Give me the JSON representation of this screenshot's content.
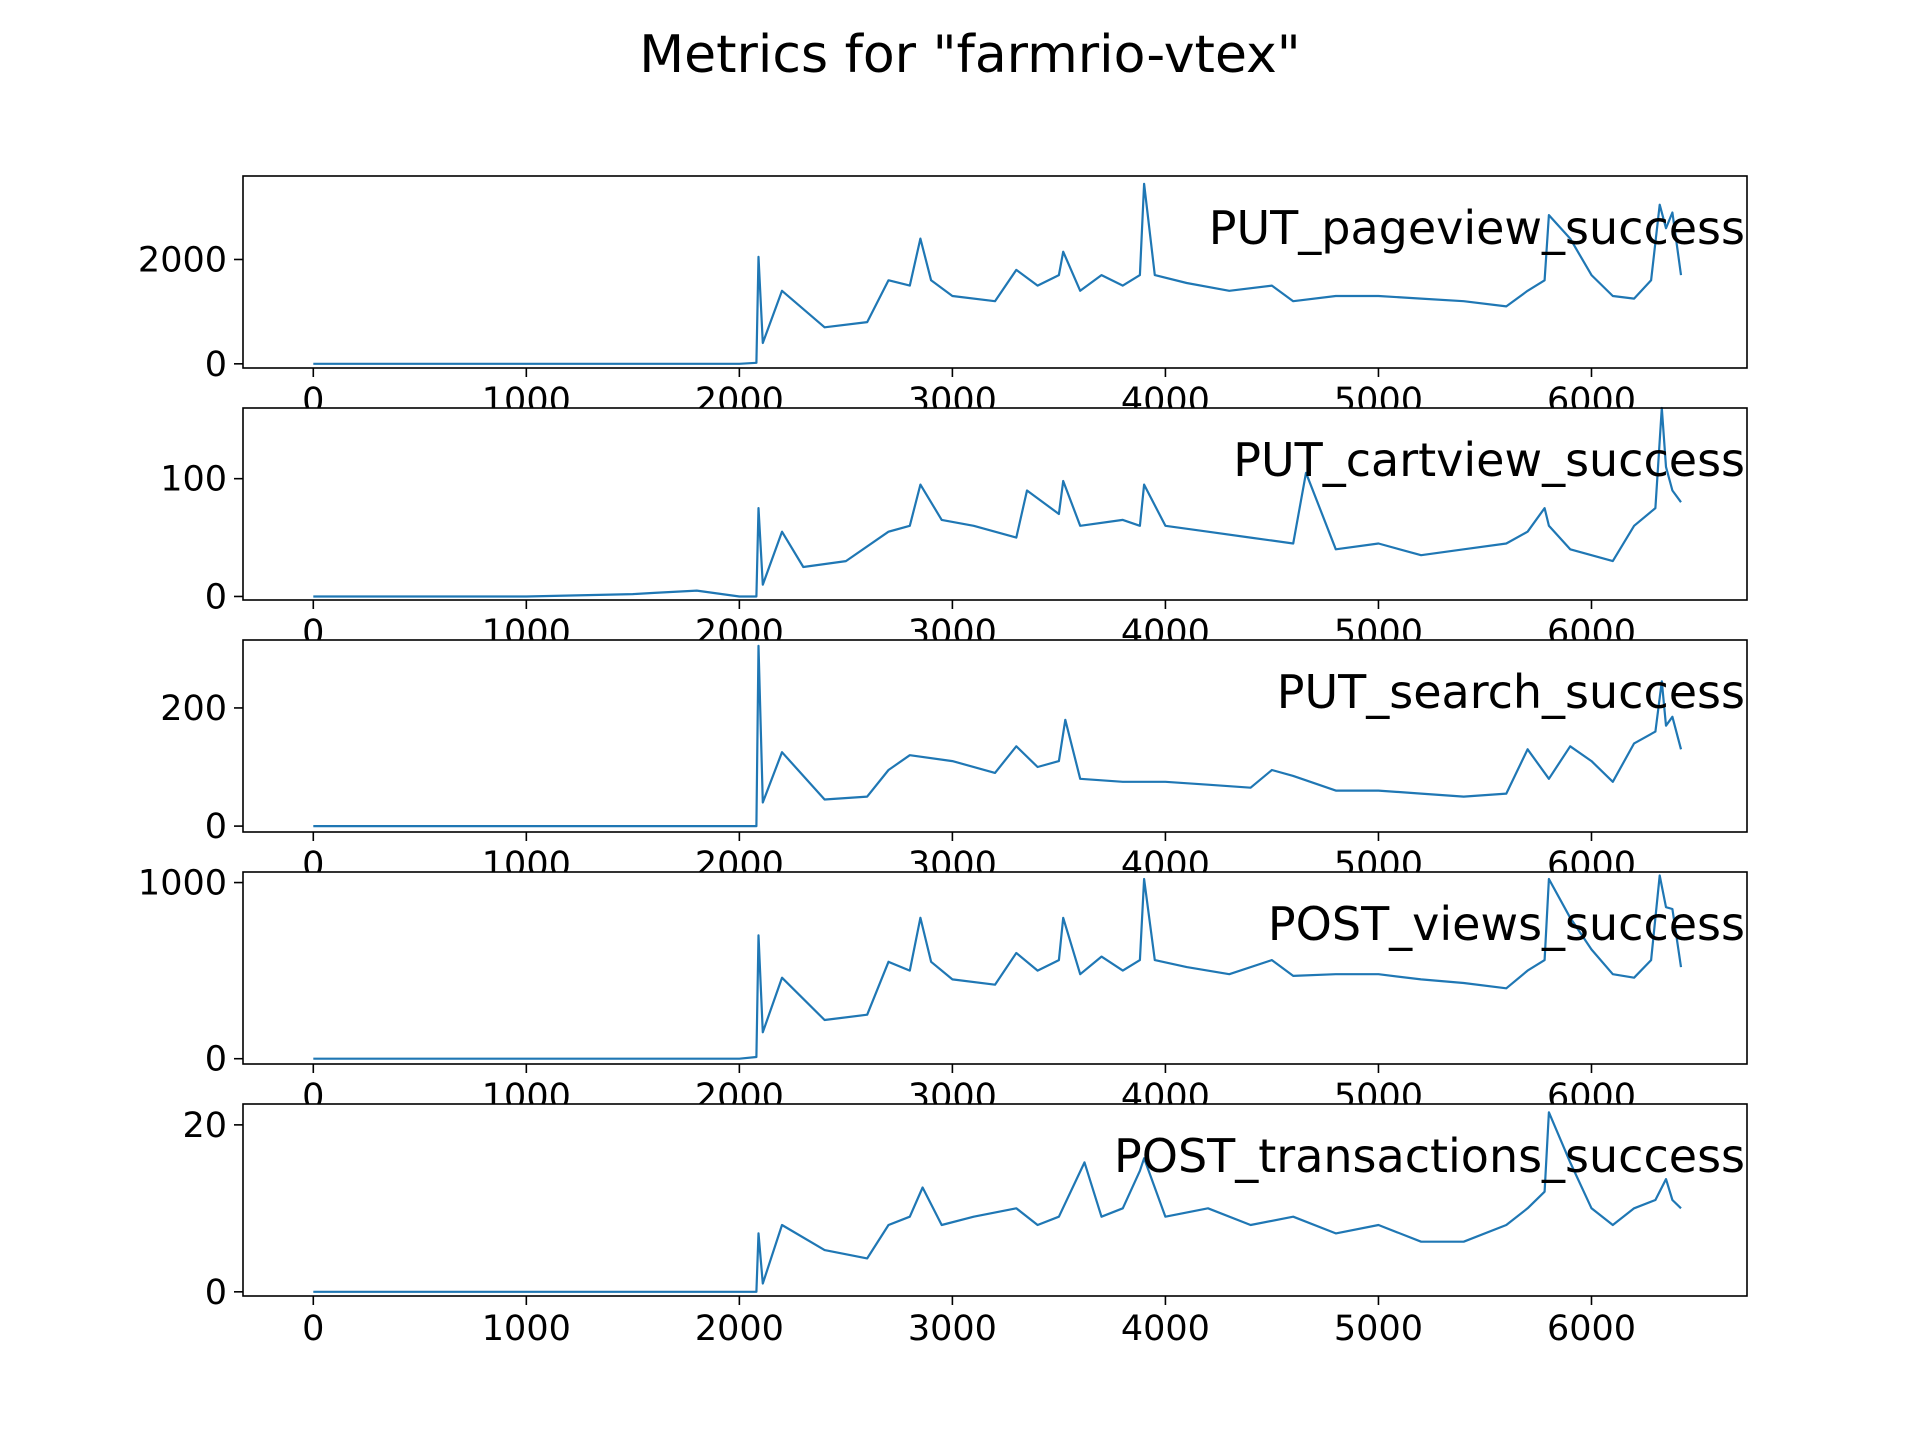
{
  "chart_data": {
    "title": "Metrics for \"farmrio-vtex\"",
    "type": "line",
    "line_color": "#1f77b4",
    "shared_x": {
      "xlim": [
        -330,
        6730
      ],
      "ticks": [
        0,
        1000,
        2000,
        3000,
        4000,
        5000,
        6000
      ],
      "tick_labels": [
        "0",
        "1000",
        "2000",
        "3000",
        "4000",
        "5000",
        "6000"
      ]
    },
    "panels": [
      {
        "label": "PUT_pageview_success",
        "ylim": [
          -80,
          3600
        ],
        "yticks": [
          0,
          2000
        ],
        "ytick_labels": [
          "0",
          "2000"
        ],
        "x": [
          0,
          1000,
          2000,
          2080,
          2090,
          2110,
          2200,
          2400,
          2600,
          2700,
          2800,
          2850,
          2900,
          3000,
          3200,
          3300,
          3400,
          3500,
          3520,
          3600,
          3700,
          3800,
          3880,
          3900,
          3950,
          4100,
          4300,
          4500,
          4600,
          4800,
          5000,
          5200,
          5400,
          5600,
          5700,
          5780,
          5800,
          5900,
          6000,
          6100,
          6200,
          6280,
          6320,
          6350,
          6380,
          6420
        ],
        "y": [
          0,
          0,
          0,
          20,
          2050,
          400,
          1400,
          700,
          800,
          1600,
          1500,
          2400,
          1600,
          1300,
          1200,
          1800,
          1500,
          1700,
          2150,
          1400,
          1700,
          1500,
          1700,
          3450,
          1700,
          1550,
          1400,
          1500,
          1200,
          1300,
          1300,
          1250,
          1200,
          1100,
          1400,
          1600,
          2850,
          2400,
          1700,
          1300,
          1250,
          1600,
          3050,
          2600,
          2900,
          1700
        ],
        "line_color": "#1f77b4"
      },
      {
        "label": "PUT_cartview_success",
        "ylim": [
          -3,
          160
        ],
        "yticks": [
          0,
          100
        ],
        "ytick_labels": [
          "0",
          "100"
        ],
        "x": [
          0,
          1000,
          1500,
          1600,
          1800,
          2000,
          2080,
          2090,
          2110,
          2200,
          2300,
          2500,
          2700,
          2800,
          2850,
          2950,
          3100,
          3300,
          3350,
          3500,
          3520,
          3600,
          3800,
          3880,
          3900,
          4000,
          4200,
          4400,
          4600,
          4660,
          4800,
          5000,
          5200,
          5400,
          5600,
          5700,
          5780,
          5800,
          5900,
          6000,
          6100,
          6200,
          6300,
          6330,
          6350,
          6380,
          6420
        ],
        "y": [
          0,
          0,
          2,
          3,
          5,
          0,
          0,
          75,
          10,
          55,
          25,
          30,
          55,
          60,
          95,
          65,
          60,
          50,
          90,
          70,
          98,
          60,
          65,
          60,
          95,
          60,
          55,
          50,
          45,
          105,
          40,
          45,
          35,
          40,
          45,
          55,
          75,
          60,
          40,
          35,
          30,
          60,
          75,
          160,
          110,
          90,
          80
        ]
      },
      {
        "label": "PUT_search_success",
        "ylim": [
          -10,
          315
        ],
        "yticks": [
          0,
          200
        ],
        "ytick_labels": [
          "0",
          "200"
        ],
        "x": [
          0,
          1000,
          2000,
          2080,
          2090,
          2110,
          2200,
          2400,
          2600,
          2700,
          2800,
          3000,
          3200,
          3300,
          3400,
          3500,
          3530,
          3600,
          3800,
          4000,
          4200,
          4400,
          4500,
          4600,
          4800,
          5000,
          5200,
          5400,
          5600,
          5700,
          5800,
          5900,
          6000,
          6100,
          6200,
          6300,
          6330,
          6350,
          6380,
          6420
        ],
        "y": [
          0,
          0,
          0,
          0,
          305,
          40,
          125,
          45,
          50,
          95,
          120,
          110,
          90,
          135,
          100,
          110,
          180,
          80,
          75,
          75,
          70,
          65,
          95,
          85,
          60,
          60,
          55,
          50,
          55,
          130,
          80,
          135,
          110,
          75,
          140,
          160,
          245,
          170,
          185,
          130
        ]
      },
      {
        "label": "POST_views_success",
        "ylim": [
          -30,
          1060
        ],
        "yticks": [
          0,
          1000
        ],
        "ytick_labels": [
          "0",
          "1000"
        ],
        "x": [
          0,
          1000,
          2000,
          2080,
          2090,
          2110,
          2200,
          2400,
          2600,
          2700,
          2800,
          2850,
          2900,
          3000,
          3200,
          3300,
          3400,
          3500,
          3520,
          3600,
          3700,
          3800,
          3880,
          3900,
          3950,
          4100,
          4300,
          4500,
          4600,
          4800,
          5000,
          5200,
          5400,
          5600,
          5700,
          5780,
          5800,
          5900,
          6000,
          6100,
          6200,
          6280,
          6320,
          6350,
          6380,
          6420
        ],
        "y": [
          0,
          0,
          0,
          10,
          700,
          150,
          460,
          220,
          250,
          550,
          500,
          800,
          550,
          450,
          420,
          600,
          500,
          560,
          800,
          480,
          580,
          500,
          560,
          1020,
          560,
          520,
          480,
          560,
          470,
          480,
          480,
          450,
          430,
          400,
          500,
          560,
          1020,
          800,
          620,
          480,
          460,
          560,
          1040,
          860,
          850,
          520
        ]
      },
      {
        "label": "POST_transactions_success",
        "ylim": [
          -0.5,
          22.5
        ],
        "yticks": [
          0,
          20
        ],
        "ytick_labels": [
          "0",
          "20"
        ],
        "x": [
          0,
          1000,
          2000,
          2080,
          2090,
          2110,
          2200,
          2400,
          2600,
          2700,
          2800,
          2860,
          2950,
          3100,
          3300,
          3400,
          3500,
          3620,
          3700,
          3800,
          3880,
          3900,
          4000,
          4200,
          4400,
          4600,
          4800,
          5000,
          5200,
          5400,
          5600,
          5700,
          5780,
          5800,
          5900,
          6000,
          6100,
          6200,
          6300,
          6350,
          6380,
          6420
        ],
        "y": [
          0,
          0,
          0,
          0,
          7,
          1,
          8,
          5,
          4,
          8,
          9,
          12.5,
          8,
          9,
          10,
          8,
          9,
          15.5,
          9,
          10,
          14.5,
          16,
          9,
          10,
          8,
          9,
          7,
          8,
          6,
          6,
          8,
          10,
          12,
          21.5,
          15.5,
          10,
          8,
          10,
          11,
          13.5,
          11,
          10
        ]
      }
    ]
  }
}
